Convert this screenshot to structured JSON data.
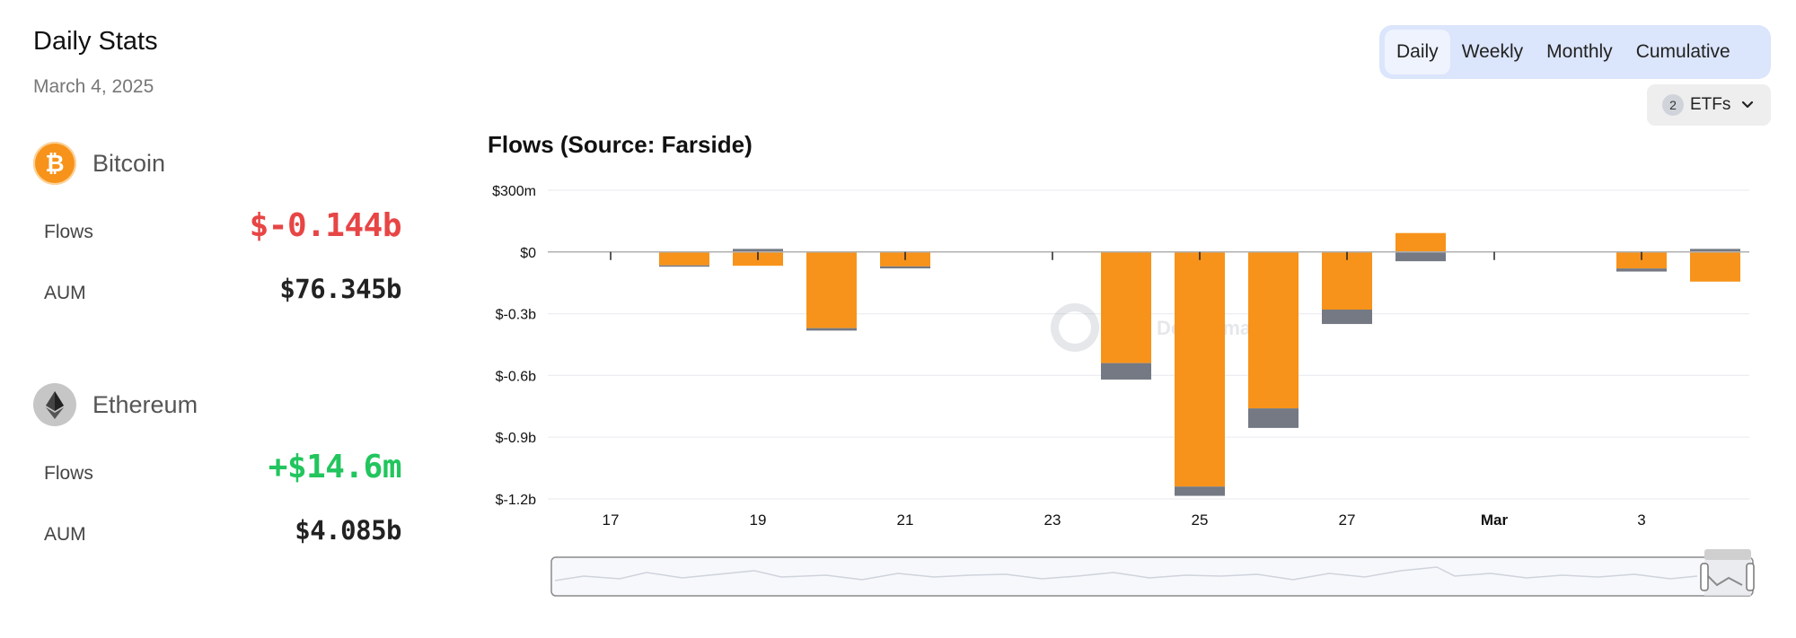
{
  "panel": {
    "title": "Daily Stats",
    "date": "March 4, 2025",
    "assets": [
      {
        "name": "Bitcoin",
        "icon": "bitcoin-icon",
        "flows_label": "Flows",
        "flows_value": "$-0.144b",
        "aum_label": "AUM",
        "aum_value": "$76.345b"
      },
      {
        "name": "Ethereum",
        "icon": "ethereum-icon",
        "flows_label": "Flows",
        "flows_value": "+$14.6m",
        "aum_label": "AUM",
        "aum_value": "$4.085b"
      }
    ]
  },
  "tabs": [
    "Daily",
    "Weekly",
    "Monthly",
    "Cumulative"
  ],
  "active_tab": "Daily",
  "etf_filter": {
    "count": "2",
    "label": "ETFs",
    "icon": "chevron-down-icon"
  },
  "colors": {
    "bitcoin": "#f7931a",
    "ethereum": "#747983",
    "negative": "#e84545",
    "positive": "#22c55e",
    "accent_bg": "#dbe5fb"
  },
  "chart_data": {
    "type": "bar",
    "stacked": true,
    "title": "Flows (Source: Farside)",
    "y_tick_labels": [
      "$300m",
      "$0",
      "$-0.3b",
      "$-0.6b",
      "$-0.9b",
      "$-1.2b"
    ],
    "y_tick_values": [
      300,
      0,
      -300,
      -600,
      -900,
      -1200
    ],
    "ylim": [
      -1200,
      300
    ],
    "x_tick_labels": [
      "17",
      "19",
      "21",
      "23",
      "25",
      "27",
      "Mar",
      "3"
    ],
    "categories": [
      "Feb 17",
      "Feb 18",
      "Feb 19",
      "Feb 20",
      "Feb 21",
      "Feb 22",
      "Feb 23",
      "Feb 24",
      "Feb 25",
      "Feb 26",
      "Feb 27",
      "Feb 28",
      "Mar 1",
      "Mar 2",
      "Mar 3",
      "Mar 4"
    ],
    "series": [
      {
        "name": "Bitcoin",
        "color": "#f7931a",
        "values": [
          0,
          -65,
          -67,
          -370,
          -70,
          0,
          0,
          -540,
          -1140,
          -760,
          -280,
          92,
          0,
          0,
          -80,
          -144
        ]
      },
      {
        "name": "Ethereum",
        "color": "#747983",
        "values": [
          0,
          -5,
          15,
          -12,
          -10,
          0,
          0,
          -80,
          -45,
          -95,
          -70,
          -45,
          0,
          0,
          -15,
          15
        ]
      }
    ],
    "grid": true,
    "watermark": "DefiLlama",
    "range_slider": true
  }
}
